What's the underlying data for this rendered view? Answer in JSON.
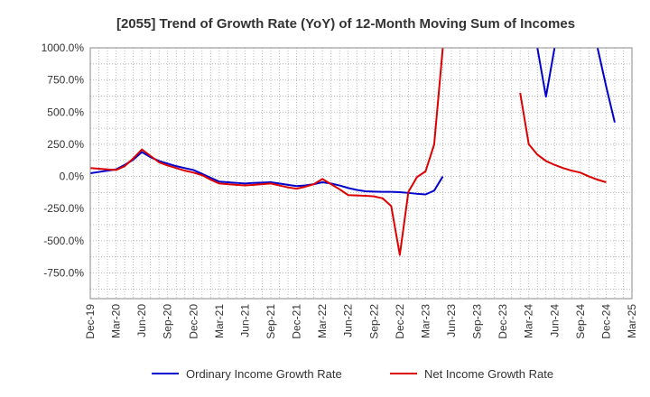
{
  "chart_data": {
    "type": "line",
    "title": "[2055]  Trend of Growth Rate (YoY) of 12-Month Moving Sum of Incomes",
    "xlabel": "",
    "ylabel": "",
    "ylim": [
      -950,
      1000
    ],
    "y_ticks": [
      "1000.0%",
      "750.0%",
      "500.0%",
      "250.0%",
      "0.0%",
      "-250.0%",
      "-500.0%",
      "-750.0%"
    ],
    "y_tick_values": [
      1000,
      750,
      500,
      250,
      0,
      -250,
      -500,
      -750
    ],
    "x_ticks": [
      "Dec-19",
      "Mar-20",
      "Jun-20",
      "Sep-20",
      "Dec-20",
      "Mar-21",
      "Jun-21",
      "Sep-21",
      "Dec-21",
      "Mar-22",
      "Jun-22",
      "Sep-22",
      "Dec-22",
      "Mar-23",
      "Jun-23",
      "Sep-23",
      "Dec-23",
      "Mar-24",
      "Jun-24",
      "Sep-24",
      "Dec-24",
      "Mar-25"
    ],
    "grid": true,
    "legend_position": "bottom",
    "series": [
      {
        "name": "Ordinary Income Growth Rate",
        "color": "#0000cc",
        "points": [
          [
            "Dec-19",
            25
          ],
          [
            "Jan-20",
            35
          ],
          [
            "Feb-20",
            45
          ],
          [
            "Mar-20",
            55
          ],
          [
            "Apr-20",
            90
          ],
          [
            "May-20",
            130
          ],
          [
            "Jun-20",
            190
          ],
          [
            "Jul-20",
            150
          ],
          [
            "Aug-20",
            120
          ],
          [
            "Sep-20",
            100
          ],
          [
            "Oct-20",
            80
          ],
          [
            "Nov-20",
            65
          ],
          [
            "Dec-20",
            50
          ],
          [
            "Jan-21",
            20
          ],
          [
            "Feb-21",
            -10
          ],
          [
            "Mar-21",
            -40
          ],
          [
            "Apr-21",
            -45
          ],
          [
            "May-21",
            -50
          ],
          [
            "Jun-21",
            -55
          ],
          [
            "Jul-21",
            -50
          ],
          [
            "Aug-21",
            -48
          ],
          [
            "Sep-21",
            -45
          ],
          [
            "Oct-21",
            -55
          ],
          [
            "Nov-21",
            -65
          ],
          [
            "Dec-21",
            -75
          ],
          [
            "Jan-22",
            -70
          ],
          [
            "Feb-22",
            -60
          ],
          [
            "Mar-22",
            -45
          ],
          [
            "Apr-22",
            -55
          ],
          [
            "May-22",
            -70
          ],
          [
            "Jun-22",
            -90
          ],
          [
            "Jul-22",
            -105
          ],
          [
            "Aug-22",
            -115
          ],
          [
            "Sep-22",
            -118
          ],
          [
            "Oct-22",
            -120
          ],
          [
            "Nov-22",
            -120
          ],
          [
            "Dec-22",
            -122
          ],
          [
            "Jan-23",
            -128
          ],
          [
            "Feb-23",
            -135
          ],
          [
            "Mar-23",
            -140
          ],
          [
            "Apr-23",
            -110
          ],
          [
            "May-23",
            0
          ],
          null,
          [
            "Apr-24",
            1000
          ],
          [
            "May-24",
            620
          ],
          [
            "Jun-24",
            1000
          ],
          null,
          [
            "Nov-24",
            1000
          ],
          [
            "Dec-24",
            700
          ],
          [
            "Jan-25",
            420
          ]
        ]
      },
      {
        "name": "Net Income Growth Rate",
        "color": "#dd0000",
        "points": [
          [
            "Dec-19",
            65
          ],
          [
            "Jan-20",
            60
          ],
          [
            "Feb-20",
            55
          ],
          [
            "Mar-20",
            50
          ],
          [
            "Apr-20",
            80
          ],
          [
            "May-20",
            140
          ],
          [
            "Jun-20",
            210
          ],
          [
            "Jul-20",
            160
          ],
          [
            "Aug-20",
            110
          ],
          [
            "Sep-20",
            85
          ],
          [
            "Oct-20",
            65
          ],
          [
            "Nov-20",
            45
          ],
          [
            "Dec-20",
            30
          ],
          [
            "Jan-21",
            10
          ],
          [
            "Feb-21",
            -25
          ],
          [
            "Mar-21",
            -55
          ],
          [
            "Apr-21",
            -60
          ],
          [
            "May-21",
            -65
          ],
          [
            "Jun-21",
            -70
          ],
          [
            "Jul-21",
            -65
          ],
          [
            "Aug-21",
            -60
          ],
          [
            "Sep-21",
            -55
          ],
          [
            "Oct-21",
            -70
          ],
          [
            "Nov-21",
            -85
          ],
          [
            "Dec-21",
            -95
          ],
          [
            "Jan-22",
            -80
          ],
          [
            "Feb-22",
            -60
          ],
          [
            "Mar-22",
            -20
          ],
          [
            "Apr-22",
            -60
          ],
          [
            "May-22",
            -100
          ],
          [
            "Jun-22",
            -145
          ],
          [
            "Jul-22",
            -148
          ],
          [
            "Aug-22",
            -150
          ],
          [
            "Sep-22",
            -155
          ],
          [
            "Oct-22",
            -170
          ],
          [
            "Nov-22",
            -230
          ],
          [
            "Dec-22",
            -610
          ],
          [
            "Jan-23",
            -120
          ],
          [
            "Feb-23",
            -5
          ],
          [
            "Mar-23",
            40
          ],
          [
            "Apr-23",
            250
          ],
          [
            "May-23",
            1000
          ],
          null,
          [
            "Feb-24",
            650
          ],
          [
            "Mar-24",
            250
          ],
          [
            "Apr-24",
            170
          ],
          [
            "May-24",
            120
          ],
          [
            "Jun-24",
            90
          ],
          [
            "Jul-24",
            65
          ],
          [
            "Aug-24",
            45
          ],
          [
            "Sep-24",
            30
          ],
          [
            "Oct-24",
            0
          ],
          [
            "Nov-24",
            -25
          ],
          [
            "Dec-24",
            -45
          ]
        ]
      }
    ]
  }
}
